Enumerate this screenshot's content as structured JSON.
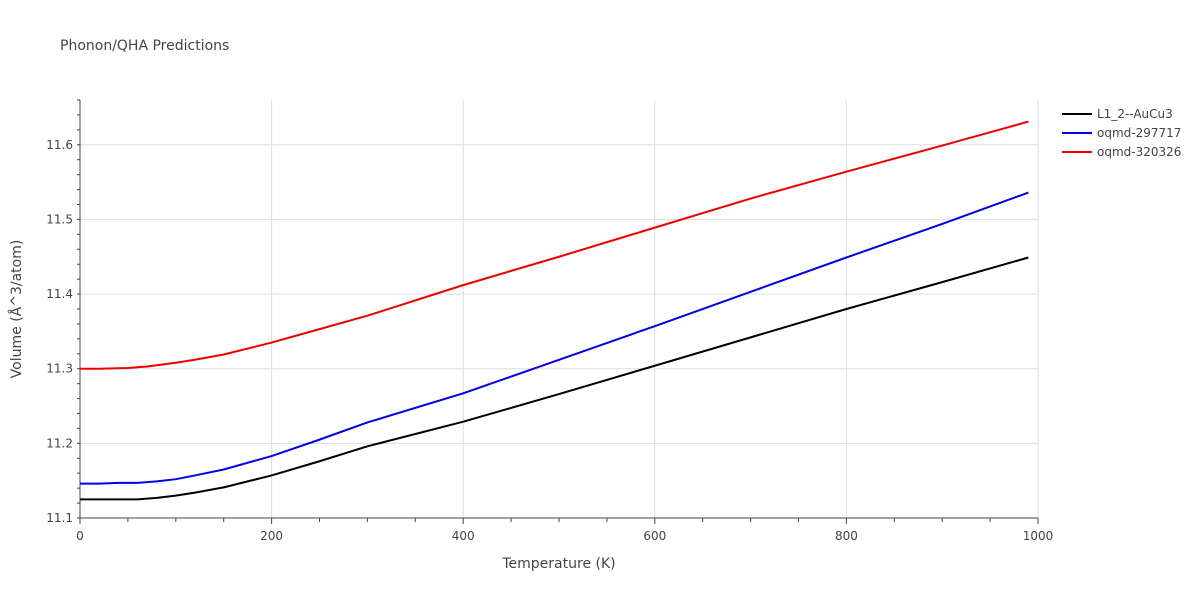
{
  "chart_data": {
    "type": "line",
    "title": "Phonon/QHA Predictions",
    "xlabel": "Temperature (K)",
    "ylabel": "Volume (Å^3/atom)",
    "xlim": [
      0,
      1000
    ],
    "ylim": [
      11.1,
      11.66
    ],
    "xticks": [
      0,
      200,
      400,
      600,
      800,
      1000
    ],
    "xtick_labels": [
      "0",
      "200",
      "400",
      "600",
      "800",
      "1000"
    ],
    "yticks": [
      11.1,
      11.2,
      11.3,
      11.4,
      11.5,
      11.6
    ],
    "ytick_labels": [
      "11.1",
      "11.2",
      "11.3",
      "11.4",
      "11.5",
      "11.6"
    ],
    "grid": true,
    "legend_position": "top-right",
    "series": [
      {
        "name": "L1_2--AuCu3",
        "color": "#000000",
        "x": [
          0,
          20,
          40,
          60,
          70,
          80,
          100,
          120,
          150,
          200,
          250,
          300,
          400,
          500,
          600,
          700,
          800,
          900,
          990
        ],
        "y": [
          11.125,
          11.125,
          11.125,
          11.125,
          11.126,
          11.127,
          11.13,
          11.134,
          11.141,
          11.157,
          11.176,
          11.196,
          11.229,
          11.266,
          11.304,
          11.342,
          11.38,
          11.416,
          11.449
        ]
      },
      {
        "name": "oqmd-297717",
        "color": "#0000ee",
        "x": [
          0,
          20,
          40,
          60,
          70,
          80,
          100,
          120,
          150,
          200,
          250,
          300,
          400,
          500,
          600,
          700,
          800,
          900,
          990
        ],
        "y": [
          11.146,
          11.146,
          11.147,
          11.147,
          11.148,
          11.149,
          11.152,
          11.157,
          11.165,
          11.183,
          11.205,
          11.228,
          11.267,
          11.312,
          11.357,
          11.403,
          11.449,
          11.494,
          11.536
        ]
      },
      {
        "name": "oqmd-320326",
        "color": "#ee0000",
        "x": [
          0,
          20,
          50,
          70,
          100,
          120,
          150,
          200,
          250,
          300,
          400,
          500,
          600,
          700,
          800,
          900,
          990
        ],
        "y": [
          11.3,
          11.3,
          11.301,
          11.303,
          11.308,
          11.312,
          11.319,
          11.335,
          11.353,
          11.371,
          11.412,
          11.45,
          11.489,
          11.528,
          11.564,
          11.599,
          11.631
        ]
      }
    ]
  }
}
